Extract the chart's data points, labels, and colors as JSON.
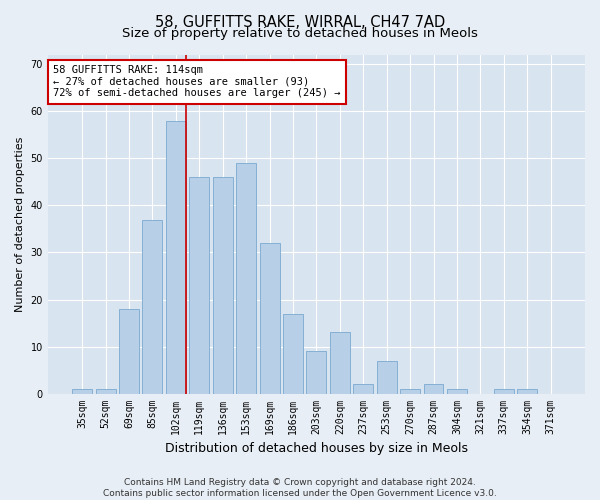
{
  "title": "58, GUFFITTS RAKE, WIRRAL, CH47 7AD",
  "subtitle": "Size of property relative to detached houses in Meols",
  "xlabel": "Distribution of detached houses by size in Meols",
  "ylabel": "Number of detached properties",
  "categories": [
    "35sqm",
    "52sqm",
    "69sqm",
    "85sqm",
    "102sqm",
    "119sqm",
    "136sqm",
    "153sqm",
    "169sqm",
    "186sqm",
    "203sqm",
    "220sqm",
    "237sqm",
    "253sqm",
    "270sqm",
    "287sqm",
    "304sqm",
    "321sqm",
    "337sqm",
    "354sqm",
    "371sqm"
  ],
  "values": [
    1,
    1,
    18,
    37,
    58,
    46,
    46,
    49,
    32,
    17,
    9,
    13,
    2,
    7,
    1,
    2,
    1,
    0,
    1,
    1,
    0
  ],
  "bar_color": "#b8cfe8",
  "bar_edge_color": "#7aaad0",
  "marker_index": 4,
  "marker_color": "#cc0000",
  "annotation_line1": "58 GUFFITTS RAKE: 114sqm",
  "annotation_line2": "← 27% of detached houses are smaller (93)",
  "annotation_line3": "72% of semi-detached houses are larger (245) →",
  "annotation_box_color": "#ffffff",
  "annotation_box_edge_color": "#cc0000",
  "ylim": [
    0,
    72
  ],
  "yticks": [
    0,
    10,
    20,
    30,
    40,
    50,
    60,
    70
  ],
  "footer_line1": "Contains HM Land Registry data © Crown copyright and database right 2024.",
  "footer_line2": "Contains public sector information licensed under the Open Government Licence v3.0.",
  "background_color": "#e8eef5",
  "plot_background_color": "#d8e4f0",
  "grid_color": "#ffffff",
  "title_fontsize": 10.5,
  "subtitle_fontsize": 9.5,
  "xlabel_fontsize": 9,
  "ylabel_fontsize": 8,
  "tick_fontsize": 7,
  "annotation_fontsize": 7.5,
  "footer_fontsize": 6.5
}
